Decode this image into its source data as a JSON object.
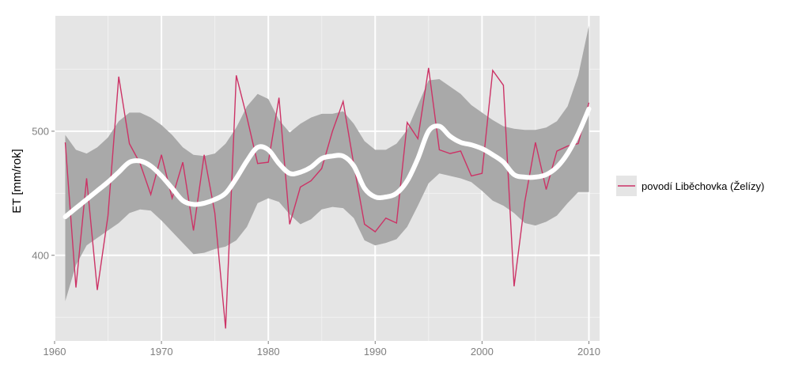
{
  "chart_data": {
    "type": "line",
    "title": "",
    "xlabel": "",
    "ylabel": "ET [mm/rok]",
    "xlim": [
      1960,
      2011
    ],
    "ylim": [
      331,
      593
    ],
    "x_ticks": [
      1960,
      1970,
      1980,
      1990,
      2000,
      2010
    ],
    "y_ticks": [
      400,
      500
    ],
    "grid": true,
    "legend_position": "right",
    "colors": {
      "panel_background": "#e5e5e5",
      "grid_major": "#ffffff",
      "series": "#cc3366",
      "smooth": "#ffffff",
      "ribbon": "#a9a9a9"
    },
    "series": [
      {
        "name": "povodí Liběchovka (Želízy)",
        "x": [
          1961,
          1962,
          1963,
          1964,
          1965,
          1966,
          1967,
          1968,
          1969,
          1970,
          1971,
          1972,
          1973,
          1974,
          1975,
          1976,
          1977,
          1978,
          1979,
          1980,
          1981,
          1982,
          1983,
          1984,
          1985,
          1986,
          1987,
          1988,
          1989,
          1990,
          1991,
          1992,
          1993,
          1994,
          1995,
          1996,
          1997,
          1998,
          1999,
          2000,
          2001,
          2002,
          2003,
          2004,
          2005,
          2006,
          2007,
          2008,
          2009,
          2010
        ],
        "y": [
          491,
          374,
          462,
          372,
          432,
          544,
          490,
          474,
          449,
          481,
          446,
          475,
          420,
          481,
          434,
          341,
          545,
          511,
          474,
          475,
          527,
          425,
          455,
          460,
          470,
          500,
          524,
          473,
          425,
          419,
          430,
          426,
          507,
          494,
          551,
          485,
          482,
          484,
          464,
          466,
          549,
          537,
          375,
          443,
          491,
          453,
          484,
          488,
          490,
          523
        ]
      }
    ],
    "smooth": {
      "x": [
        1961,
        1962,
        1963,
        1964,
        1965,
        1966,
        1967,
        1968,
        1969,
        1970,
        1971,
        1972,
        1973,
        1974,
        1975,
        1976,
        1977,
        1978,
        1979,
        1980,
        1981,
        1982,
        1983,
        1984,
        1985,
        1986,
        1987,
        1988,
        1989,
        1990,
        1991,
        1992,
        1993,
        1994,
        1995,
        1996,
        1997,
        1998,
        1999,
        2000,
        2001,
        2002,
        2003,
        2004,
        2005,
        2006,
        2007,
        2008,
        2009,
        2010
      ],
      "y": [
        431,
        438,
        445,
        452,
        459,
        467,
        475,
        476,
        472,
        464,
        454,
        444,
        441,
        442,
        445,
        450,
        462,
        476,
        487,
        485,
        474,
        466,
        467,
        471,
        478,
        480,
        480,
        472,
        454,
        447,
        447,
        450,
        460,
        478,
        500,
        504,
        496,
        491,
        489,
        486,
        481,
        475,
        465,
        463,
        463,
        465,
        471,
        482,
        498,
        518
      ],
      "lower": [
        363,
        392,
        408,
        414,
        420,
        426,
        434,
        437,
        436,
        428,
        419,
        410,
        401,
        402,
        405,
        407,
        412,
        423,
        442,
        446,
        443,
        433,
        425,
        429,
        437,
        439,
        438,
        430,
        412,
        408,
        410,
        413,
        423,
        440,
        458,
        466,
        464,
        462,
        459,
        452,
        444,
        440,
        434,
        426,
        424,
        427,
        432,
        442,
        451,
        451
      ],
      "upper": [
        497,
        485,
        482,
        487,
        495,
        508,
        515,
        515,
        511,
        505,
        497,
        487,
        481,
        480,
        482,
        490,
        503,
        520,
        530,
        526,
        509,
        499,
        506,
        511,
        514,
        514,
        516,
        506,
        492,
        485,
        485,
        490,
        501,
        521,
        541,
        542,
        536,
        530,
        521,
        515,
        509,
        504,
        502,
        501,
        501,
        503,
        508,
        520,
        545,
        585
      ]
    }
  }
}
